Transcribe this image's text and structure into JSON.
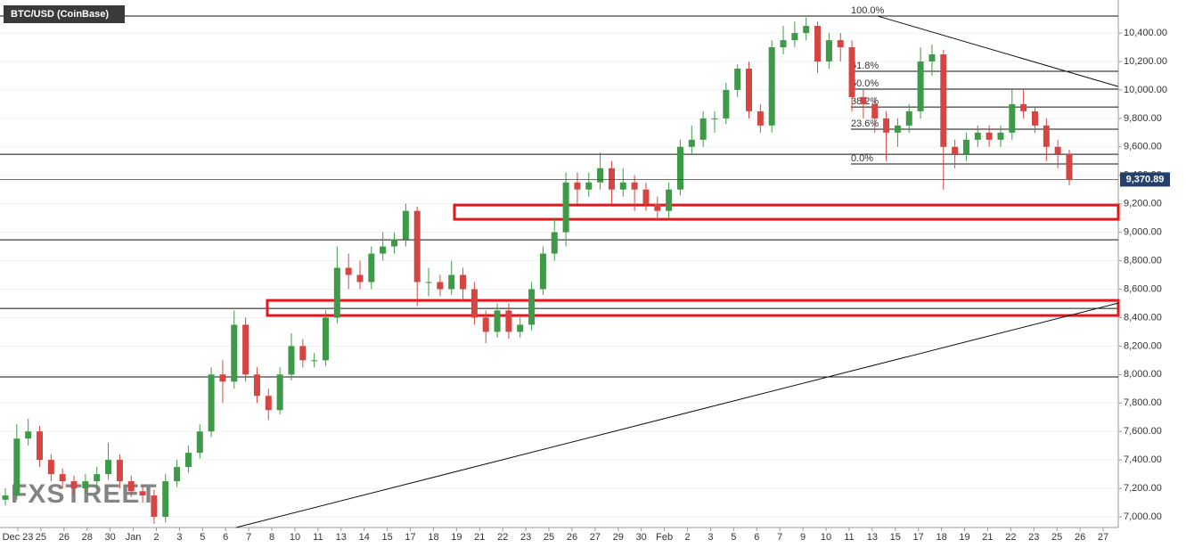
{
  "chart_data": {
    "type": "candlestick",
    "title": "BTC/USD (CoinBase)",
    "watermark": "FXSTREET",
    "up_color": "#3d9b47",
    "down_color": "#d64541",
    "ylim": [
      6925,
      10632
    ],
    "yticks": [
      {
        "value": 7000,
        "label": "7,000.00"
      },
      {
        "value": 7200,
        "label": "7,200.00"
      },
      {
        "value": 7400,
        "label": "7,400.00"
      },
      {
        "value": 7600,
        "label": "7,600.00"
      },
      {
        "value": 7800,
        "label": "7,800.00"
      },
      {
        "value": 8000,
        "label": "8,000.00"
      },
      {
        "value": 8200,
        "label": "8,200.00"
      },
      {
        "value": 8400,
        "label": "8,400.00"
      },
      {
        "value": 8600,
        "label": "8,600.00"
      },
      {
        "value": 8800,
        "label": "8,800.00"
      },
      {
        "value": 9000,
        "label": "9,000.00"
      },
      {
        "value": 9200,
        "label": "9,200.00"
      },
      {
        "value": 9400,
        "label": "9,400.00"
      },
      {
        "value": 9600,
        "label": "9,600.00"
      },
      {
        "value": 9800,
        "label": "9,800.00"
      },
      {
        "value": 10000,
        "label": "10,000.00"
      },
      {
        "value": 10200,
        "label": "10,200.00"
      },
      {
        "value": 10400,
        "label": "10,400.00"
      }
    ],
    "grid": true,
    "xticks": [
      "Dec 23",
      "25",
      "26",
      "28",
      "30",
      "Jan",
      "2",
      "3",
      "5",
      "6",
      "7",
      "8",
      "10",
      "11",
      "13",
      "14",
      "15",
      "17",
      "18",
      "19",
      "21",
      "22",
      "23",
      "25",
      "26",
      "27",
      "29",
      "30",
      "Feb",
      "2",
      "3",
      "5",
      "6",
      "7",
      "9",
      "10",
      "11",
      "13",
      "15",
      "17",
      "18",
      "19",
      "21",
      "22",
      "23",
      "25",
      "26",
      "27"
    ],
    "open": [
      7120,
      7150,
      7550,
      7600,
      7400,
      7300,
      7250,
      7200,
      7250,
      7300,
      7400,
      7250,
      7180,
      7150,
      7000,
      7250,
      7350,
      7450,
      7600,
      8000,
      7950,
      8350,
      8000,
      7850,
      7750,
      8000,
      8200,
      8100,
      8100,
      8400,
      8750,
      8700,
      8650,
      8850,
      8900,
      8950,
      9150,
      8650,
      8650,
      8600,
      8700,
      8600,
      8400,
      8300,
      8450,
      8300,
      8350,
      8600,
      8850,
      9000,
      9350,
      9300,
      9350,
      9450,
      9300,
      9350,
      9300,
      9200,
      9150,
      9300,
      9600,
      9650,
      9800,
      9800,
      10000,
      10150,
      9850,
      9750,
      10300,
      10350,
      10400,
      10450,
      10200,
      10350,
      10300,
      9950,
      9900,
      9800,
      9700,
      9750,
      9850,
      10200,
      10250,
      9600,
      9550,
      9650,
      9700,
      9650,
      9700,
      9900,
      9850,
      9750,
      9600,
      9550
    ],
    "high": [
      7200,
      7650,
      7690,
      7640,
      7440,
      7340,
      7290,
      7300,
      7350,
      7520,
      7440,
      7290,
      7220,
      7190,
      7300,
      7400,
      7500,
      7650,
      8050,
      8100,
      8450,
      8400,
      8050,
      7900,
      8050,
      8290,
      8250,
      8150,
      8450,
      8900,
      8850,
      8800,
      8900,
      9000,
      9000,
      9200,
      9180,
      8750,
      8700,
      8800,
      8750,
      8650,
      8450,
      8500,
      8500,
      8400,
      8650,
      8900,
      9100,
      9420,
      9420,
      9420,
      9560,
      9500,
      9450,
      9400,
      9350,
      9250,
      9350,
      9650,
      9750,
      9850,
      9850,
      10050,
      10180,
      10200,
      9900,
      10350,
      10450,
      10480,
      10510,
      10480,
      10400,
      10400,
      10350,
      10000,
      9950,
      9850,
      9800,
      9900,
      10300,
      10320,
      10280,
      9650,
      9700,
      9750,
      9750,
      9750,
      10000,
      10000,
      9880,
      9800,
      9650,
      9580
    ],
    "low": [
      7080,
      7120,
      7500,
      7350,
      7250,
      7200,
      7150,
      7160,
      7210,
      7260,
      7200,
      7140,
      7100,
      6950,
      6960,
      7210,
      7310,
      7410,
      7560,
      7800,
      7900,
      7950,
      7800,
      7680,
      7720,
      7960,
      8050,
      8050,
      8060,
      8360,
      8600,
      8600,
      8600,
      8800,
      8850,
      8900,
      8480,
      8550,
      8550,
      8560,
      8520,
      8350,
      8220,
      8260,
      8250,
      8260,
      8310,
      8560,
      8800,
      8900,
      9200,
      9250,
      9300,
      9200,
      9250,
      9150,
      9150,
      9080,
      9100,
      9260,
      9550,
      9600,
      9700,
      9760,
      9950,
      9800,
      9700,
      9700,
      10250,
      10300,
      10350,
      10120,
      10150,
      10200,
      9850,
      9800,
      9700,
      9500,
      9600,
      9700,
      9800,
      10100,
      9300,
      9450,
      9500,
      9600,
      9600,
      9600,
      9650,
      9800,
      9700,
      9500,
      9450,
      9330
    ],
    "close": [
      7150,
      7550,
      7600,
      7400,
      7300,
      7250,
      7200,
      7250,
      7300,
      7400,
      7250,
      7180,
      7150,
      7000,
      7250,
      7350,
      7450,
      7600,
      8000,
      7950,
      8350,
      8000,
      7850,
      7750,
      8000,
      8200,
      8100,
      8100,
      8400,
      8750,
      8700,
      8650,
      8850,
      8900,
      8950,
      9150,
      8650,
      8650,
      8600,
      8700,
      8600,
      8400,
      8300,
      8450,
      8300,
      8350,
      8600,
      8850,
      9000,
      9350,
      9300,
      9350,
      9450,
      9300,
      9350,
      9300,
      9200,
      9150,
      9300,
      9600,
      9650,
      9800,
      9800,
      10000,
      10150,
      9850,
      9750,
      10300,
      10350,
      10400,
      10450,
      10200,
      10350,
      10300,
      9950,
      9900,
      9800,
      9700,
      9750,
      9850,
      10200,
      10250,
      9600,
      9550,
      9650,
      9700,
      9650,
      9700,
      9900,
      9850,
      9750,
      9600,
      9550,
      9370
    ],
    "current_price": {
      "value": 9370.89,
      "label": "9,370.89"
    },
    "levels": [
      10519,
      9548,
      8947,
      8465,
      7983
    ],
    "fib_levels": [
      {
        "value": 10519,
        "label": "100.0%"
      },
      {
        "value": 10131,
        "label": "61.8%"
      },
      {
        "value": 10006,
        "label": "50.0%"
      },
      {
        "value": 9880,
        "label": "38.2%"
      },
      {
        "value": 9724,
        "label": "23.6%"
      },
      {
        "value": 9480,
        "label": "0.0%"
      }
    ],
    "zones": [
      {
        "high": 9191,
        "low": 9091
      },
      {
        "high": 8521,
        "low": 8415
      }
    ],
    "trendlines": [
      {
        "start": 10519,
        "end": 10024
      },
      {
        "start": 6925,
        "end": 8502
      }
    ]
  }
}
